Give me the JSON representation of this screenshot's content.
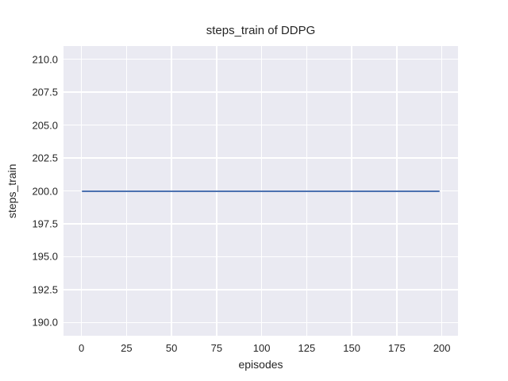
{
  "chart_data": {
    "type": "line",
    "title": "steps_train of DDPG",
    "xlabel": "episodes",
    "ylabel": "steps_train",
    "grid": true,
    "legend": false,
    "plot_background": "#eaeaf2",
    "grid_color": "#ffffff",
    "xlim": [
      -9.95,
      208.95
    ],
    "ylim": [
      189,
      211
    ],
    "x_ticks": [
      0,
      25,
      50,
      75,
      100,
      125,
      150,
      175,
      200
    ],
    "x_tick_labels": [
      "0",
      "25",
      "50",
      "75",
      "100",
      "125",
      "150",
      "175",
      "200"
    ],
    "y_ticks": [
      190.0,
      192.5,
      195.0,
      197.5,
      200.0,
      202.5,
      205.0,
      207.5,
      210.0
    ],
    "y_tick_labels": [
      "190.0",
      "192.5",
      "195.0",
      "197.5",
      "200.0",
      "202.5",
      "205.0",
      "207.5",
      "210.0"
    ],
    "series": [
      {
        "name": "steps_train",
        "color": "#4c72b0",
        "x": [
          0,
          199
        ],
        "y": [
          200,
          200
        ],
        "description": "constant line: steps_train equals 200 for every episode from 0 to 199"
      }
    ]
  }
}
